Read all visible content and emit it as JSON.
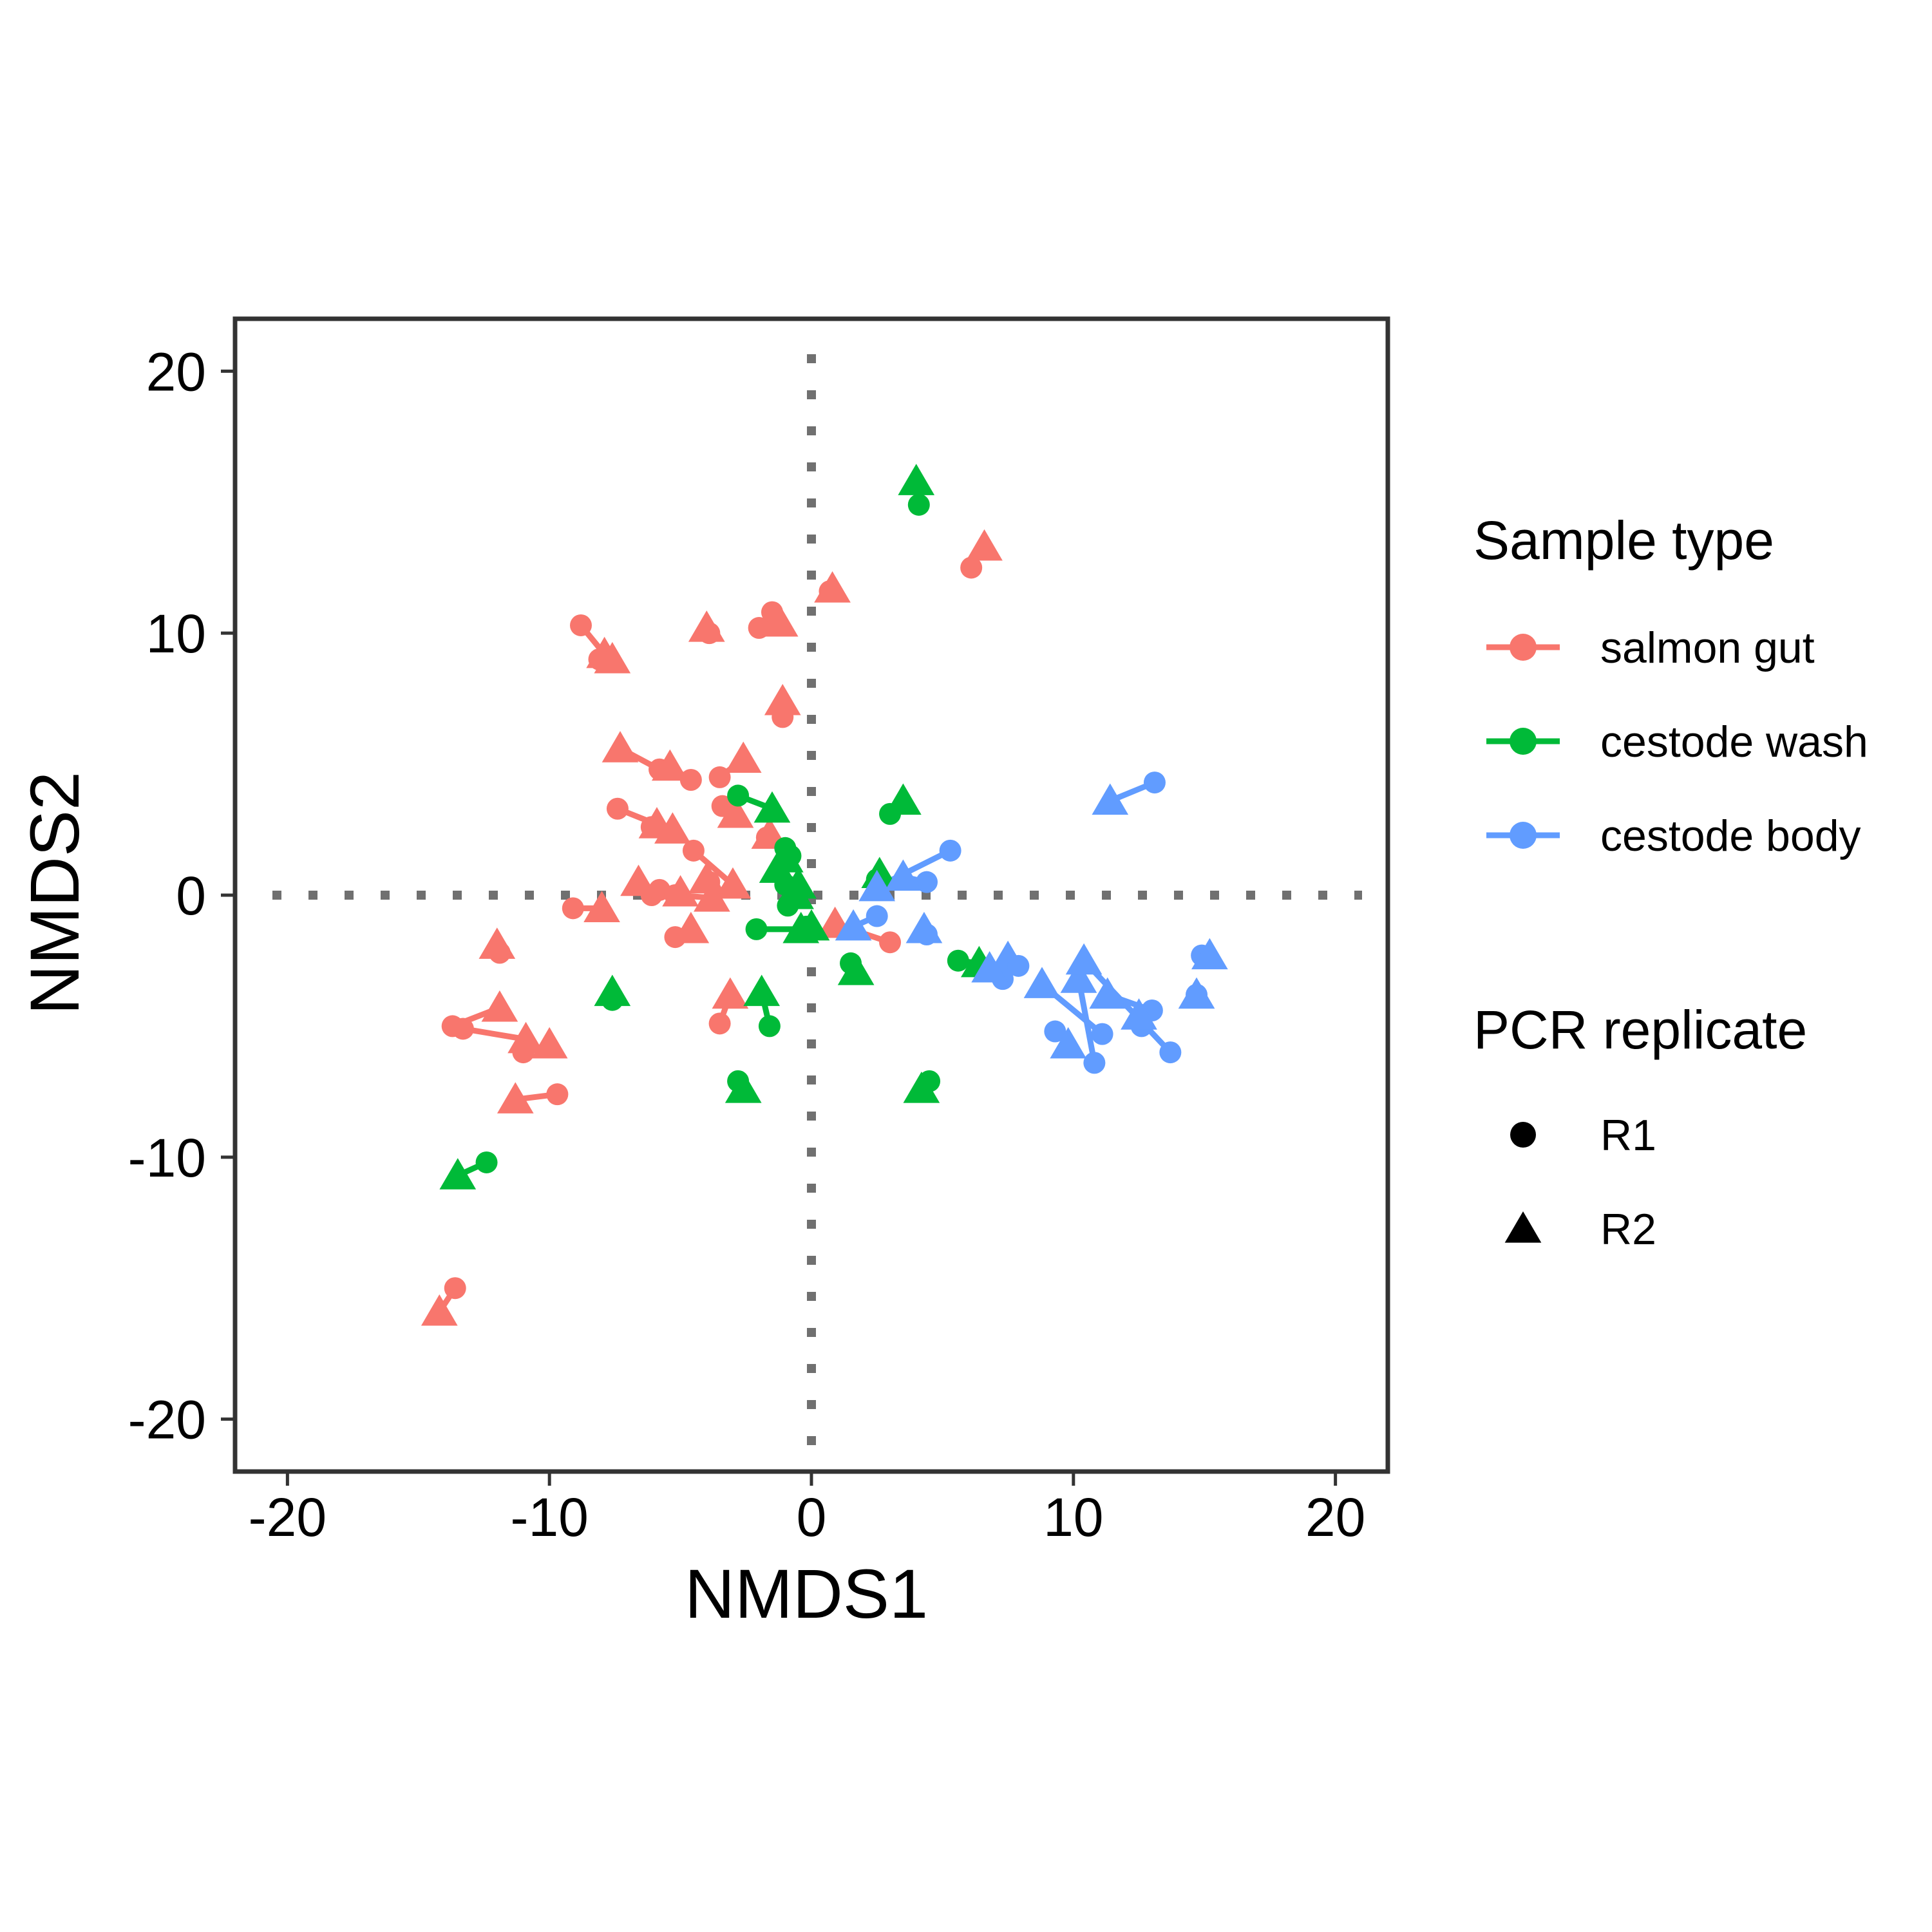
{
  "chart_data": {
    "type": "scatter",
    "xlabel": "NMDS1",
    "ylabel": "NMDS2",
    "xlim": [
      -22,
      22
    ],
    "ylim": [
      -22,
      22
    ],
    "x_ticks": [
      -20,
      -10,
      0,
      10,
      20
    ],
    "y_ticks": [
      -20,
      -10,
      0,
      10,
      20
    ],
    "x_tick_labels": [
      "-20",
      "-10",
      "0",
      "10",
      "20"
    ],
    "y_tick_labels": [
      "-20",
      "-10",
      "0",
      "10",
      "20"
    ],
    "reference_lines": {
      "x": 0,
      "y": 0,
      "style": "dotted"
    },
    "grid": false,
    "legend_position": "right",
    "legend": {
      "color_title": "Sample type",
      "shape_title": "PCR replicate",
      "shape_entries": [
        {
          "label": "R1",
          "shape": "circle"
        },
        {
          "label": "R2",
          "shape": "triangle"
        }
      ]
    },
    "series": [
      {
        "name": "salmon gut",
        "color": "#F8766D",
        "pairs": [
          {
            "r1": [
              -8.8,
              10.3
            ],
            "r2": [
              -7.9,
              9.2
            ]
          },
          {
            "r1": [
              -8.1,
              9.0
            ],
            "r2": [
              -7.6,
              9.0
            ]
          },
          {
            "r1": [
              -3.9,
              10.0
            ],
            "r2": [
              -4.0,
              10.2
            ]
          },
          {
            "r1": [
              -2.0,
              10.2
            ],
            "r2": [
              -1.5,
              10.5
            ]
          },
          {
            "r1": [
              -1.5,
              10.8
            ],
            "r2": [
              -1.2,
              10.4
            ]
          },
          {
            "r1": [
              0.7,
              11.6
            ],
            "r2": [
              0.8,
              11.7
            ]
          },
          {
            "r1": [
              6.1,
              12.5
            ],
            "r2": [
              6.6,
              13.3
            ]
          },
          {
            "r1": [
              -1.1,
              6.8
            ],
            "r2": [
              -1.1,
              7.4
            ]
          },
          {
            "r1": [
              -5.8,
              4.8
            ],
            "r2": [
              -7.3,
              5.6
            ]
          },
          {
            "r1": [
              -4.6,
              4.4
            ],
            "r2": [
              -5.4,
              4.9
            ]
          },
          {
            "r1": [
              -3.5,
              4.5
            ],
            "r2": [
              -2.6,
              5.2
            ]
          },
          {
            "r1": [
              -7.4,
              3.3
            ],
            "r2": [
              -5.9,
              2.7
            ]
          },
          {
            "r1": [
              -6.1,
              2.6
            ],
            "r2": [
              -5.3,
              2.5
            ]
          },
          {
            "r1": [
              -3.4,
              3.4
            ],
            "r2": [
              -2.9,
              3.1
            ]
          },
          {
            "r1": [
              -1.7,
              2.2
            ],
            "r2": [
              -1.6,
              2.3
            ]
          },
          {
            "r1": [
              -4.5,
              1.7
            ],
            "r2": [
              -3.0,
              0.4
            ]
          },
          {
            "r1": [
              -3.9,
              0.5
            ],
            "r2": [
              -4.0,
              0.6
            ]
          },
          {
            "r1": [
              -6.1,
              0.0
            ],
            "r2": [
              -6.6,
              0.5
            ]
          },
          {
            "r1": [
              -5.8,
              0.2
            ],
            "r2": [
              -5.0,
              0.1
            ]
          },
          {
            "r1": [
              -5.2,
              0.0
            ],
            "r2": [
              -3.8,
              -0.1
            ]
          },
          {
            "r1": [
              -9.1,
              -0.5
            ],
            "r2": [
              -8.0,
              -0.5
            ]
          },
          {
            "r1": [
              -5.2,
              -1.6
            ],
            "r2": [
              -4.6,
              -1.3
            ]
          },
          {
            "r1": [
              -11.9,
              -2.2
            ],
            "r2": [
              -12.0,
              -1.9
            ]
          },
          {
            "r1": [
              -13.7,
              -5.0
            ],
            "r2": [
              -11.9,
              -4.3
            ]
          },
          {
            "r1": [
              -13.3,
              -5.1
            ],
            "r2": [
              -10.9,
              -5.5
            ]
          },
          {
            "r1": [
              -11.0,
              -6.0
            ],
            "r2": [
              -10.0,
              -5.7
            ]
          },
          {
            "r1": [
              -9.7,
              -7.6
            ],
            "r2": [
              -11.3,
              -7.8
            ]
          },
          {
            "r1": [
              -3.5,
              -4.9
            ],
            "r2": [
              -3.1,
              -3.8
            ]
          },
          {
            "r1": [
              -13.6,
              -15.0
            ],
            "r2": [
              -14.2,
              -15.9
            ]
          },
          {
            "r1": [
              3.0,
              -1.8
            ],
            "r2": [
              0.9,
              -1.1
            ]
          }
        ]
      },
      {
        "name": "cestode wash",
        "color": "#00BA38",
        "pairs": [
          {
            "r1": [
              4.1,
              14.9
            ],
            "r2": [
              4.0,
              15.8
            ]
          },
          {
            "r1": [
              -2.8,
              3.8
            ],
            "r2": [
              -1.5,
              3.3
            ]
          },
          {
            "r1": [
              3.0,
              3.1
            ],
            "r2": [
              3.5,
              3.6
            ]
          },
          {
            "r1": [
              -1.0,
              1.8
            ],
            "r2": [
              -1.3,
              1.0
            ]
          },
          {
            "r1": [
              -0.8,
              1.5
            ],
            "r2": [
              -1.0,
              1.4
            ]
          },
          {
            "r1": [
              -1.0,
              0.4
            ],
            "r2": [
              -0.5,
              0.4
            ]
          },
          {
            "r1": [
              -0.9,
              -0.4
            ],
            "r2": [
              -0.6,
              0.0
            ]
          },
          {
            "r1": [
              2.5,
              0.6
            ],
            "r2": [
              2.6,
              0.8
            ]
          },
          {
            "r1": [
              -2.1,
              -1.3
            ],
            "r2": [
              -0.4,
              -1.3
            ]
          },
          {
            "r1": [
              -0.2,
              -1.2
            ],
            "r2": [
              0.0,
              -1.2
            ]
          },
          {
            "r1": [
              1.5,
              -2.6
            ],
            "r2": [
              1.7,
              -2.9
            ]
          },
          {
            "r1": [
              5.6,
              -2.5
            ],
            "r2": [
              6.4,
              -2.6
            ]
          },
          {
            "r1": [
              -7.6,
              -4.0
            ],
            "r2": [
              -7.6,
              -3.7
            ]
          },
          {
            "r1": [
              -1.6,
              -5.0
            ],
            "r2": [
              -1.9,
              -3.7
            ]
          },
          {
            "r1": [
              -2.8,
              -7.1
            ],
            "r2": [
              -2.6,
              -7.4
            ]
          },
          {
            "r1": [
              4.5,
              -7.1
            ],
            "r2": [
              4.2,
              -7.4
            ]
          },
          {
            "r1": [
              -12.4,
              -10.2
            ],
            "r2": [
              -13.5,
              -10.7
            ]
          }
        ]
      },
      {
        "name": "cestode body",
        "color": "#619CFF",
        "pairs": [
          {
            "r1": [
              13.1,
              4.3
            ],
            "r2": [
              11.4,
              3.6
            ]
          },
          {
            "r1": [
              5.3,
              1.7
            ],
            "r2": [
              2.5,
              0.3
            ]
          },
          {
            "r1": [
              4.4,
              0.5
            ],
            "r2": [
              3.5,
              0.7
            ]
          },
          {
            "r1": [
              2.5,
              -0.8
            ],
            "r2": [
              1.6,
              -1.2
            ]
          },
          {
            "r1": [
              4.4,
              -1.5
            ],
            "r2": [
              4.3,
              -1.3
            ]
          },
          {
            "r1": [
              7.3,
              -3.2
            ],
            "r2": [
              7.5,
              -2.4
            ]
          },
          {
            "r1": [
              7.9,
              -2.7
            ],
            "r2": [
              6.8,
              -2.8
            ]
          },
          {
            "r1": [
              11.1,
              -5.3
            ],
            "r2": [
              8.8,
              -3.4
            ]
          },
          {
            "r1": [
              10.8,
              -6.4
            ],
            "r2": [
              10.2,
              -3.2
            ]
          },
          {
            "r1": [
              9.3,
              -5.2
            ],
            "r2": [
              9.8,
              -5.7
            ]
          },
          {
            "r1": [
              13.7,
              -6.0
            ],
            "r2": [
              10.4,
              -2.5
            ]
          },
          {
            "r1": [
              13.0,
              -4.4
            ],
            "r2": [
              11.3,
              -3.8
            ]
          },
          {
            "r1": [
              12.6,
              -5.0
            ],
            "r2": [
              12.5,
              -4.6
            ]
          },
          {
            "r1": [
              14.9,
              -2.3
            ],
            "r2": [
              15.2,
              -2.3
            ]
          },
          {
            "r1": [
              14.7,
              -3.8
            ],
            "r2": [
              14.7,
              -3.8
            ]
          }
        ]
      }
    ]
  }
}
